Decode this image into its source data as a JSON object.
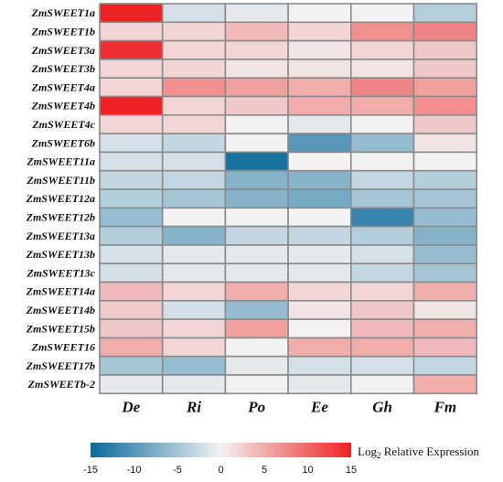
{
  "chart_data": {
    "type": "heatmap",
    "rows": [
      "ZmSWEET1a",
      "ZmSWEET1b",
      "ZmSWEET3a",
      "ZmSWEET3b",
      "ZmSWEET4a",
      "ZmSWEET4b",
      "ZmSWEET4c",
      "ZmSWEET6b",
      "ZmSWEET11a",
      "ZmSWEET11b",
      "ZmSWEET12a",
      "ZmSWEET12b",
      "ZmSWEET13a",
      "ZmSWEET13b",
      "ZmSWEET13c",
      "ZmSWEET14a",
      "ZmSWEET14b",
      "ZmSWEET15b",
      "ZmSWEET16",
      "ZmSWEET17b",
      "ZmSWEETb-2"
    ],
    "columns": [
      "De",
      "Ri",
      "Po",
      "Ee",
      "Gh",
      "Fm"
    ],
    "values": [
      [
        15,
        -2,
        -1,
        0,
        0,
        -4
      ],
      [
        2,
        2,
        4,
        2,
        7,
        8
      ],
      [
        14,
        2,
        2,
        1,
        2,
        3
      ],
      [
        2,
        2,
        1,
        1,
        1,
        3
      ],
      [
        2,
        7,
        6,
        5,
        8,
        6
      ],
      [
        15,
        2,
        3,
        5,
        5,
        7
      ],
      [
        2,
        2,
        0,
        -1,
        0,
        3
      ],
      [
        -2,
        -3,
        0,
        -10,
        -6,
        1
      ],
      [
        -2,
        -2,
        -14,
        0,
        0,
        0
      ],
      [
        -3,
        -3,
        -7,
        -7,
        -3,
        -4
      ],
      [
        -4,
        -5,
        -7,
        -8,
        -5,
        -5
      ],
      [
        -6,
        0,
        0,
        0,
        -12,
        -6
      ],
      [
        -4,
        -7,
        -3,
        -3,
        -4,
        -7
      ],
      [
        -2,
        -1,
        -1,
        -1,
        -2,
        -6
      ],
      [
        -2,
        -1,
        -1,
        -1,
        -3,
        -5
      ],
      [
        4,
        2,
        5,
        2,
        2,
        5
      ],
      [
        3,
        -2,
        -6,
        1,
        3,
        1
      ],
      [
        3,
        2,
        6,
        0,
        4,
        5
      ],
      [
        5,
        2,
        0,
        5,
        5,
        4
      ],
      [
        -5,
        -6,
        -1,
        -2,
        -2,
        -3
      ],
      [
        -1,
        -1,
        0,
        -1,
        0,
        5
      ]
    ],
    "colorbar": {
      "title_main": "Log",
      "title_sub": "2",
      "title_rest": " Relative Expression",
      "min": -15,
      "max": 15,
      "ticks": [
        "-15",
        "-10",
        "-5",
        "0",
        "5",
        "10",
        "15"
      ],
      "colors": {
        "low": "#0a6a9c",
        "mid": "#f2f2f2",
        "high": "#ef2121"
      }
    }
  }
}
